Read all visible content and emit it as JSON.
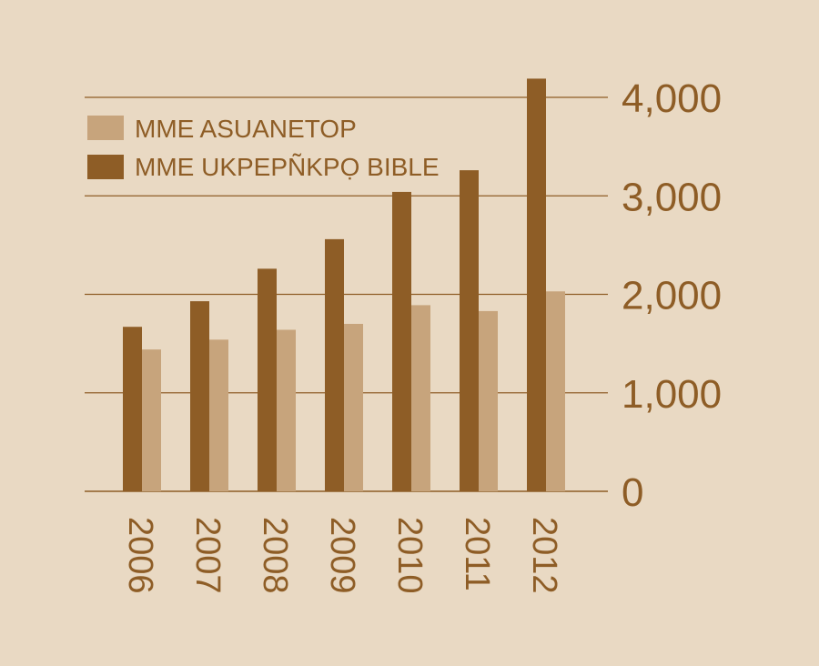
{
  "colors": {
    "background": "#e9d9c3",
    "dark": "#8e5d26",
    "light": "#c7a47c",
    "grid": "#8e5d26",
    "text": "#8e5d26"
  },
  "chart_data": {
    "type": "bar",
    "title": "",
    "xlabel": "",
    "ylabel": "",
    "categories": [
      "2006",
      "2007",
      "2008",
      "2009",
      "2010",
      "2011",
      "2012"
    ],
    "series": [
      {
        "name": "MME UKPEPÑKPỌ BIBLE",
        "values": [
          1670,
          1930,
          2260,
          2560,
          3040,
          3260,
          4190
        ],
        "color": "#8e5d26"
      },
      {
        "name": "MME ASUANETOP",
        "values": [
          1440,
          1540,
          1640,
          1700,
          1890,
          1830,
          2030
        ],
        "color": "#c7a47c"
      }
    ],
    "ylim": [
      0,
      4000
    ],
    "yticks": [
      0,
      1000,
      2000,
      3000,
      4000
    ],
    "ytick_labels": [
      "0",
      "1,000",
      "2,000",
      "3,000",
      "4,000"
    ],
    "grid": true,
    "legend": {
      "position": "top-left",
      "entries": [
        {
          "label": "MME ASUANETOP",
          "color": "#c7a47c"
        },
        {
          "label": "MME UKPEPÑKPỌ BIBLE",
          "color": "#8e5d26"
        }
      ]
    },
    "y_axis_side": "right",
    "x_tick_rotation": "vertical"
  }
}
